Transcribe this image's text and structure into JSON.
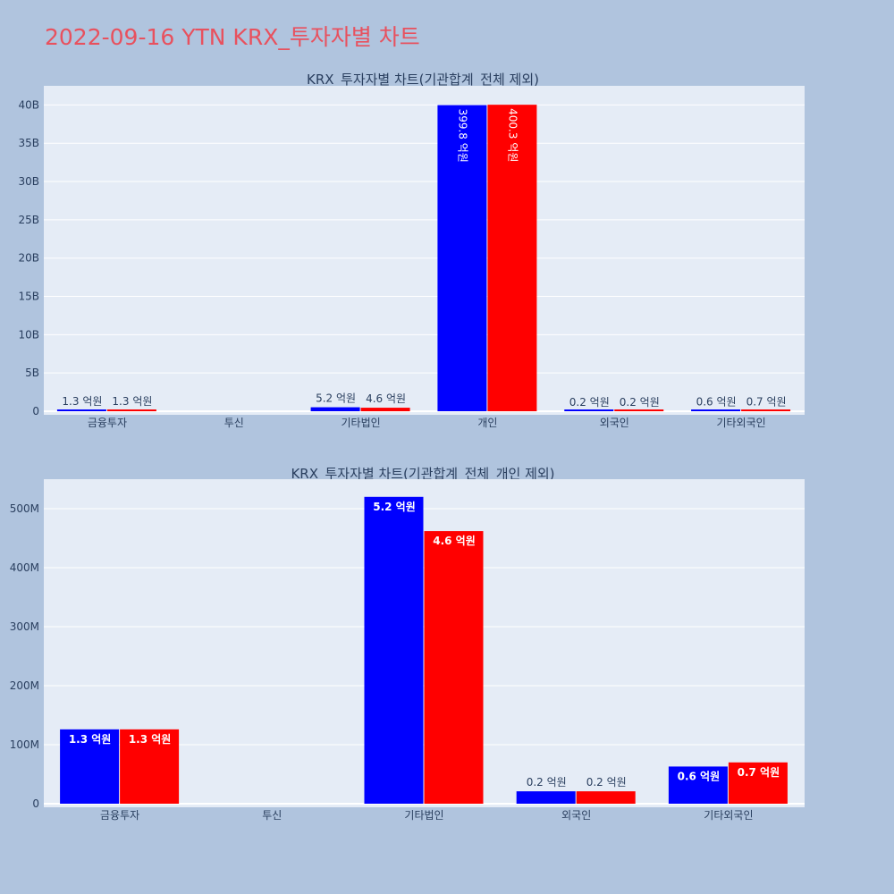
{
  "header": {
    "title": "2022-09-16 YTN KRX_투자자별 차트"
  },
  "colors": {
    "series_a": "#0000ff",
    "series_b": "#ff0000",
    "plot_bg": "#e5ecf6",
    "grid": "#ffffff"
  },
  "chart_data": [
    {
      "type": "bar",
      "title": "KRX_투자자별 차트(기관합계_전체 제외)",
      "categories": [
        "금융투자",
        "투신",
        "기타법인",
        "개인",
        "외국인",
        "기타외국인"
      ],
      "series": [
        {
          "values": [
            130000000,
            0,
            520000000,
            39980000000,
            20000000,
            60000000
          ],
          "labels": [
            "1.3 억원",
            "",
            "5.2 억원",
            "399.8 억원",
            "0.2 억원",
            "0.6 억원"
          ]
        },
        {
          "values": [
            130000000,
            0,
            460000000,
            40030000000,
            20000000,
            70000000
          ],
          "labels": [
            "1.3 억원",
            "",
            "4.6 억원",
            "400.3 억원",
            "0.2 억원",
            "0.7 억원"
          ]
        }
      ],
      "ylim": [
        0,
        42500000000
      ],
      "yticks": [
        0,
        5000000000,
        10000000000,
        15000000000,
        20000000000,
        25000000000,
        30000000000,
        35000000000,
        40000000000
      ],
      "ytick_labels": [
        "0",
        "5B",
        "10B",
        "15B",
        "20B",
        "25B",
        "30B",
        "35B",
        "40B"
      ],
      "grid": true
    },
    {
      "type": "bar",
      "title": "KRX_투자자별 차트(기관합계_전체_개인 제외)",
      "categories": [
        "금융투자",
        "투신",
        "기타법인",
        "외국인",
        "기타외국인"
      ],
      "series": [
        {
          "values": [
            126000000,
            0,
            520000000,
            21000000,
            63000000
          ],
          "labels": [
            "1.3 억원",
            "",
            "5.2 억원",
            "0.2 억원",
            "0.6 억원"
          ]
        },
        {
          "values": [
            126000000,
            0,
            462000000,
            21000000,
            70000000
          ],
          "labels": [
            "1.3 억원",
            "",
            "4.6 억원",
            "0.2 억원",
            "0.7 억원"
          ]
        }
      ],
      "ylim": [
        0,
        550000000
      ],
      "yticks": [
        0,
        100000000,
        200000000,
        300000000,
        400000000,
        500000000
      ],
      "ytick_labels": [
        "0",
        "100M",
        "200M",
        "300M",
        "400M",
        "500M"
      ],
      "grid": true
    }
  ]
}
